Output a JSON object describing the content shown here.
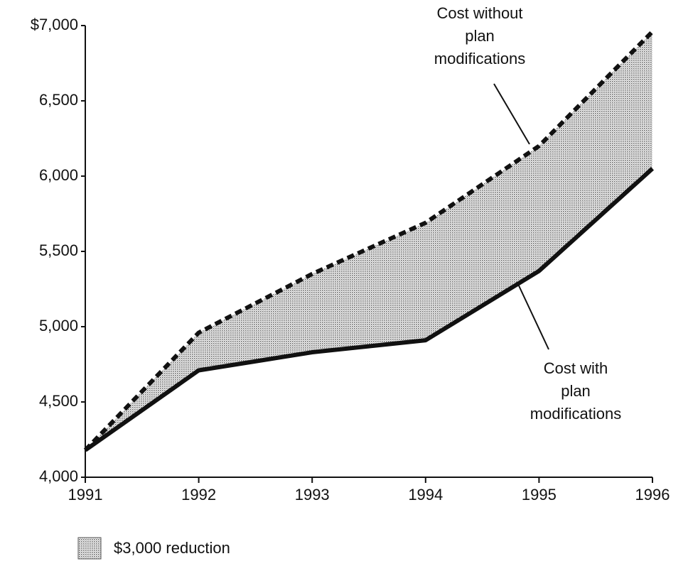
{
  "chart_data": {
    "type": "line",
    "categories": [
      "1991",
      "1992",
      "1993",
      "1994",
      "1995",
      "1996"
    ],
    "series": [
      {
        "color": "#111111",
        "style": "dashed",
        "values": [
          4180,
          4960,
          5350,
          5690,
          6200,
          6960
        ]
      },
      {
        "color": "#111111",
        "style": "solid",
        "values": [
          4180,
          4710,
          4830,
          4910,
          5370,
          6050
        ]
      }
    ],
    "fill_between": true,
    "fill_color": "#888888",
    "ylim": [
      4000,
      7000
    ],
    "yticks": [
      {
        "value": 4000,
        "label": "4,000"
      },
      {
        "value": 4500,
        "label": "4,500"
      },
      {
        "value": 5000,
        "label": "5,000"
      },
      {
        "value": 5500,
        "label": "5,500"
      },
      {
        "value": 6000,
        "label": "6,000"
      },
      {
        "value": 6500,
        "label": "6,500"
      },
      {
        "value": 7000,
        "label": "$7,000"
      }
    ],
    "grid": false,
    "annotations": [
      {
        "lines": [
          "Cost without",
          "plan",
          "modifications"
        ]
      },
      {
        "lines": [
          "Cost with",
          "plan",
          "modifications"
        ]
      }
    ],
    "legend_label": "$3,000 reduction",
    "legend": "bottom-left"
  }
}
